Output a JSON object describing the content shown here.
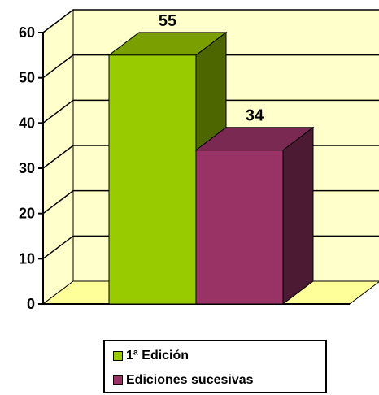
{
  "chart_data": {
    "type": "bar",
    "categories": [
      "1ª Edición",
      "Ediciones sucesivas"
    ],
    "values": [
      55,
      34
    ],
    "data_labels": [
      "55",
      "34"
    ],
    "ylim": [
      0,
      60
    ],
    "ytick_labels": [
      "0",
      "10",
      "20",
      "30",
      "40",
      "50",
      "60"
    ],
    "title": "",
    "xlabel": "",
    "ylabel": "",
    "grid": true,
    "three_d": true,
    "legend_position": "bottom",
    "colors": {
      "wall": "#FFFFCC",
      "floor": "#FFFF99",
      "series": [
        {
          "front": "#99CC00",
          "side": "#4D6600",
          "top": "#7A9F00"
        },
        {
          "front": "#993366",
          "side": "#4D1A33",
          "top": "#7A2952"
        }
      ]
    }
  },
  "legend": {
    "items": [
      "1ª Edición",
      "Ediciones sucesivas"
    ]
  }
}
